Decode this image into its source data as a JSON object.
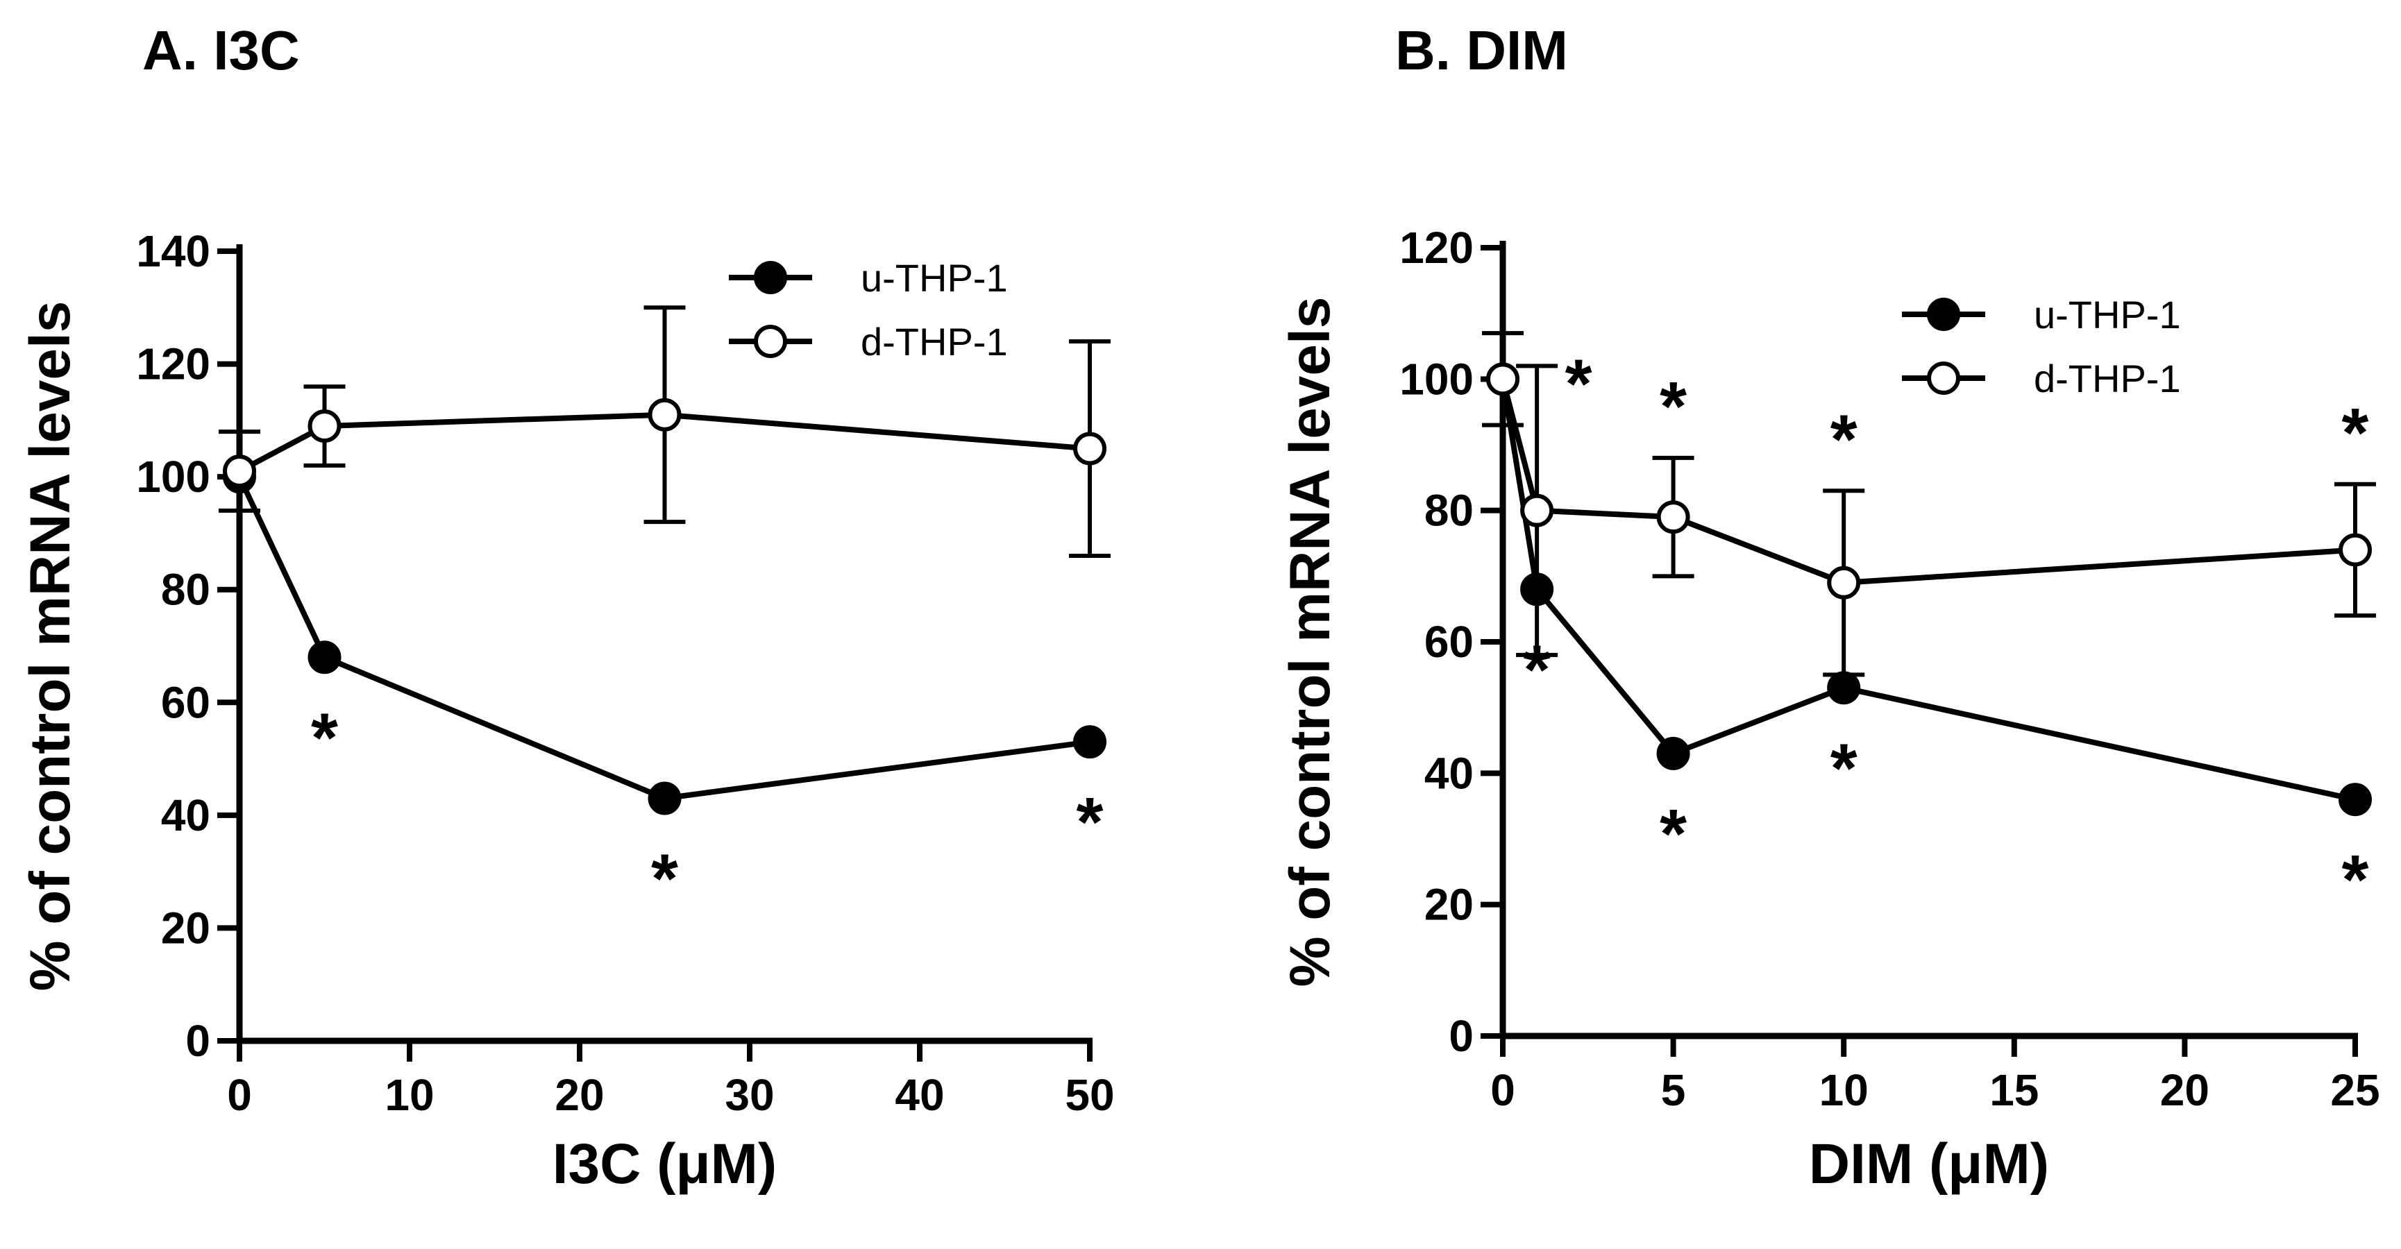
{
  "chart_data": [
    {
      "type": "line",
      "title": "A. I3C",
      "xlabel": "I3C (μM)",
      "ylabel": "% of control mRNA levels",
      "xlim": [
        0,
        50
      ],
      "ylim": [
        0,
        140
      ],
      "xticks": [
        0,
        10,
        20,
        30,
        40,
        50
      ],
      "yticks": [
        0,
        20,
        40,
        60,
        80,
        100,
        120,
        140
      ],
      "x": [
        0,
        5,
        25,
        50
      ],
      "legend_position": "top-right",
      "series": [
        {
          "name": "u-THP-1",
          "marker": "filled-circle",
          "values": [
            100,
            68,
            43,
            53
          ],
          "errors": [
            null,
            null,
            null,
            null
          ],
          "significant": [
            "",
            "*",
            "*",
            "*"
          ],
          "star_side": "below"
        },
        {
          "name": "d-THP-1",
          "marker": "open-circle",
          "values": [
            101,
            109,
            111,
            105
          ],
          "errors": [
            7,
            7,
            19,
            19
          ],
          "significant": [
            "",
            "",
            "",
            ""
          ],
          "star_side": "above"
        }
      ]
    },
    {
      "type": "line",
      "title": "B. DIM",
      "xlabel": "DIM (μM)",
      "ylabel": "% of control mRNA levels",
      "xlim": [
        0,
        25
      ],
      "ylim": [
        0,
        120
      ],
      "xticks": [
        0,
        5,
        10,
        15,
        20,
        25
      ],
      "yticks": [
        0,
        20,
        40,
        60,
        80,
        100,
        120
      ],
      "x": [
        0,
        1,
        5,
        10,
        25
      ],
      "legend_position": "top-right",
      "series": [
        {
          "name": "u-THP-1",
          "marker": "filled-circle",
          "values": [
            100,
            68,
            43,
            53,
            36
          ],
          "errors": [
            null,
            null,
            null,
            null,
            null
          ],
          "significant": [
            "",
            "*",
            "*",
            "*",
            "*"
          ],
          "star_side": "below"
        },
        {
          "name": "d-THP-1",
          "marker": "open-circle",
          "values": [
            100,
            80,
            79,
            69,
            74
          ],
          "errors": [
            7,
            22,
            9,
            14,
            10
          ],
          "significant": [
            "",
            "*",
            "*",
            "*",
            "*"
          ],
          "star_side": "above"
        }
      ]
    }
  ]
}
